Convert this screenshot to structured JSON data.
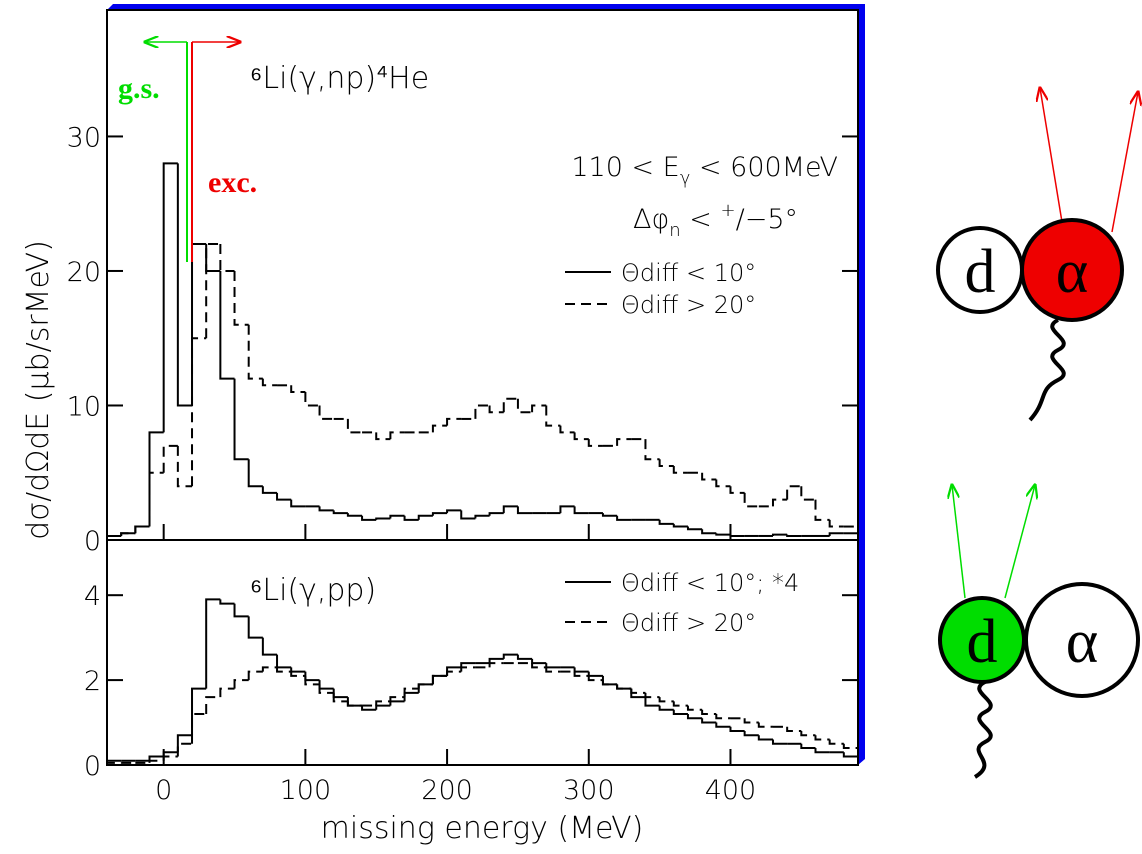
{
  "chart_data": [
    {
      "type": "histogram",
      "title": "⁶Li(γ,np)⁴He",
      "ylabel": "dσ/dΩdE (μb/srMeV)",
      "annotations": {
        "ground_state": "g.s.",
        "excited": "exc.",
        "energy_cut": [
          "110 < E",
          "γ",
          " < 600MeV"
        ],
        "angle_cut": [
          "Δφ",
          "n",
          " < ",
          "+",
          "/−5°"
        ]
      },
      "xlim": [
        -40,
        490
      ],
      "ylim": [
        0,
        39.4
      ],
      "yticks": [
        0,
        10,
        20,
        30
      ],
      "bins": [
        -40,
        -30,
        -20,
        -10,
        0,
        10,
        20,
        30,
        40,
        50,
        60,
        70,
        80,
        90,
        100,
        110,
        120,
        130,
        140,
        150,
        160,
        170,
        180,
        190,
        200,
        210,
        220,
        230,
        240,
        250,
        260,
        270,
        280,
        290,
        300,
        310,
        320,
        330,
        340,
        350,
        360,
        370,
        380,
        390,
        400,
        410,
        420,
        430,
        440,
        450,
        460,
        470,
        480,
        490
      ],
      "series": [
        {
          "name": "Θdiff < 10°",
          "color": "#000000",
          "linestyle": "solid",
          "values": [
            0.3,
            0.5,
            1,
            8,
            28,
            10,
            22,
            20,
            12,
            6,
            4,
            3.5,
            3,
            2.5,
            2.5,
            2.2,
            2,
            1.8,
            1.5,
            1.6,
            1.8,
            1.5,
            1.8,
            2,
            2.2,
            1.6,
            1.8,
            2,
            2.5,
            2,
            2,
            2,
            2.5,
            2,
            2,
            1.8,
            1.5,
            1.5,
            1.5,
            1.2,
            1,
            0.8,
            0.5,
            0.4,
            0.3,
            0.3,
            0.3,
            0.4,
            0.3,
            0.3,
            0.3,
            0.5,
            0.5
          ]
        },
        {
          "name": "Θdiff > 20°",
          "color": "#000000",
          "linestyle": "dashed",
          "values": [
            0.3,
            0.5,
            1,
            5,
            7,
            4,
            15,
            22,
            20,
            16,
            12,
            11.5,
            11.5,
            11,
            10,
            9,
            9,
            8,
            8,
            7.5,
            8,
            8,
            8,
            8.5,
            9,
            9,
            10,
            9.5,
            10.5,
            9.5,
            10,
            8.5,
            8,
            7.5,
            7,
            7,
            7.5,
            7.5,
            6,
            5.5,
            5,
            5,
            4.5,
            4,
            3.5,
            2.5,
            2.5,
            3,
            4,
            3,
            1.5,
            1,
            1
          ]
        }
      ]
    },
    {
      "type": "histogram",
      "title": "⁶Li(γ,pp)",
      "xlabel": "missing energy (MeV)",
      "xlim": [
        -40,
        490
      ],
      "xticks": [
        0,
        100,
        200,
        300,
        400
      ],
      "ylim": [
        0,
        5.3
      ],
      "yticks": [
        0,
        2,
        4
      ],
      "bins": [
        -40,
        -30,
        -20,
        -10,
        0,
        10,
        20,
        30,
        40,
        50,
        60,
        70,
        80,
        90,
        100,
        110,
        120,
        130,
        140,
        150,
        160,
        170,
        180,
        190,
        200,
        210,
        220,
        230,
        240,
        250,
        260,
        270,
        280,
        290,
        300,
        310,
        320,
        330,
        340,
        350,
        360,
        370,
        380,
        390,
        400,
        410,
        420,
        430,
        440,
        450,
        460,
        470,
        480,
        490
      ],
      "series": [
        {
          "name": "Θdiff < 10°; *4",
          "color": "#000000",
          "linestyle": "solid",
          "values": [
            0.1,
            0.1,
            0.1,
            0.2,
            0.3,
            0.7,
            1.8,
            3.9,
            3.8,
            3.5,
            3,
            2.6,
            2.3,
            2.2,
            2,
            1.8,
            1.6,
            1.4,
            1.3,
            1.4,
            1.5,
            1.7,
            1.9,
            2.1,
            2.3,
            2.4,
            2.4,
            2.5,
            2.6,
            2.5,
            2.4,
            2.3,
            2.3,
            2.2,
            2.1,
            1.9,
            1.8,
            1.6,
            1.4,
            1.3,
            1.2,
            1.1,
            1,
            0.9,
            0.8,
            0.7,
            0.6,
            0.5,
            0.5,
            0.4,
            0.3,
            0.3,
            0.2
          ]
        },
        {
          "name": "Θdiff > 20°",
          "color": "#000000",
          "linestyle": "dashed",
          "values": [
            0.05,
            0.05,
            0.05,
            0.1,
            0.2,
            0.5,
            1.2,
            1.6,
            1.8,
            2,
            2.2,
            2.3,
            2.2,
            2.1,
            1.9,
            1.7,
            1.5,
            1.4,
            1.4,
            1.5,
            1.6,
            1.8,
            1.9,
            2.1,
            2.2,
            2.3,
            2.3,
            2.4,
            2.4,
            2.4,
            2.3,
            2.2,
            2.2,
            2.1,
            2,
            1.9,
            1.8,
            1.7,
            1.6,
            1.5,
            1.4,
            1.3,
            1.2,
            1.1,
            1.1,
            1,
            0.9,
            0.9,
            0.8,
            0.7,
            0.6,
            0.5,
            0.4
          ]
        }
      ]
    }
  ],
  "diagrams": [
    {
      "left": "d",
      "right": "α"
    },
    {
      "left": "d",
      "right": "α"
    }
  ]
}
